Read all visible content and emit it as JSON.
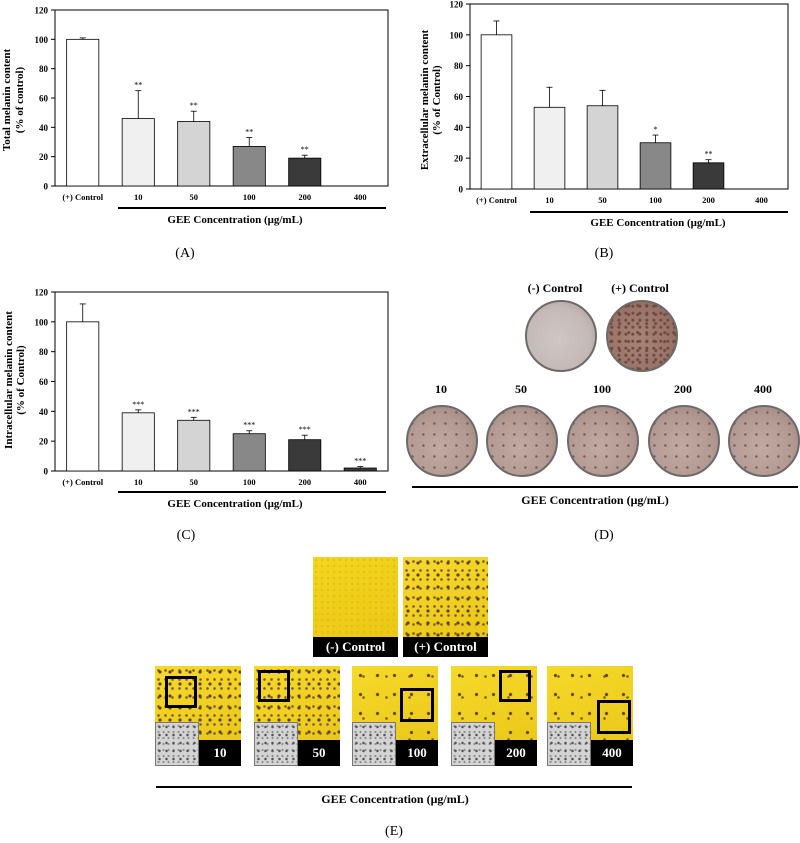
{
  "chart_data": [
    {
      "type": "bar",
      "panel": "(A)",
      "ylabel": "Total melanin content",
      "ylabel2": "(% of control)",
      "xlabel": "GEE Concentration (μg/mL)",
      "categories": [
        "(+) Control",
        "10",
        "50",
        "100",
        "200",
        "400"
      ],
      "values": [
        100,
        46,
        44,
        27,
        19,
        null
      ],
      "errors": [
        1,
        19,
        7,
        6,
        2,
        null
      ],
      "significance": [
        "",
        "**",
        "**",
        "**",
        "**",
        ""
      ],
      "yticks": [
        "0",
        "20",
        "40",
        "60",
        "80",
        "100",
        "120"
      ],
      "ylim": [
        0,
        120
      ],
      "colors": [
        "#ffffff",
        "#f0f0f0",
        "#d4d4d4",
        "#888888",
        "#3a3a3a",
        "#ffffff"
      ]
    },
    {
      "type": "bar",
      "panel": "(B)",
      "ylabel": "Extracellular melanin content",
      "ylabel2": "(% of Control)",
      "xlabel": "GEE Concentration (μg/mL)",
      "categories": [
        "(+) Control",
        "10",
        "50",
        "100",
        "200",
        "400"
      ],
      "values": [
        100,
        53,
        54,
        30,
        17,
        null
      ],
      "errors": [
        9,
        13,
        10,
        5,
        2,
        null
      ],
      "significance": [
        "",
        "",
        "",
        "*",
        "**",
        ""
      ],
      "yticks": [
        "0",
        "20",
        "40",
        "60",
        "80",
        "100",
        "120"
      ],
      "ylim": [
        0,
        120
      ],
      "colors": [
        "#ffffff",
        "#f0f0f0",
        "#d4d4d4",
        "#888888",
        "#3a3a3a",
        "#ffffff"
      ]
    },
    {
      "type": "bar",
      "panel": "(C)",
      "ylabel": "Intracellular melanin content",
      "ylabel2": "(% of Control)",
      "xlabel": "GEE Concentration (μg/mL)",
      "categories": [
        "(+) Control",
        "10",
        "50",
        "100",
        "200",
        "400"
      ],
      "values": [
        100,
        39,
        34,
        25,
        21,
        2
      ],
      "errors": [
        12,
        2,
        2,
        2,
        3,
        1
      ],
      "significance": [
        "",
        "***",
        "***",
        "***",
        "***",
        "***"
      ],
      "yticks": [
        "0",
        "20",
        "40",
        "60",
        "80",
        "100",
        "120"
      ],
      "ylim": [
        0,
        120
      ],
      "colors": [
        "#ffffff",
        "#f0f0f0",
        "#d4d4d4",
        "#888888",
        "#3a3a3a",
        "#3a3a3a"
      ]
    }
  ],
  "panel_d": {
    "label": "(D)",
    "controls": [
      "(-) Control",
      "(+) Control"
    ],
    "doses": [
      "10",
      "50",
      "100",
      "200",
      "400"
    ],
    "xlabel": "GEE Concentration (μg/mL)"
  },
  "panel_e": {
    "label": "(E)",
    "controls": [
      "(-) Control",
      "(+) Control"
    ],
    "doses": [
      "10",
      "50",
      "100",
      "200",
      "400"
    ],
    "xlabel": "GEE Concentration (μg/mL)"
  }
}
